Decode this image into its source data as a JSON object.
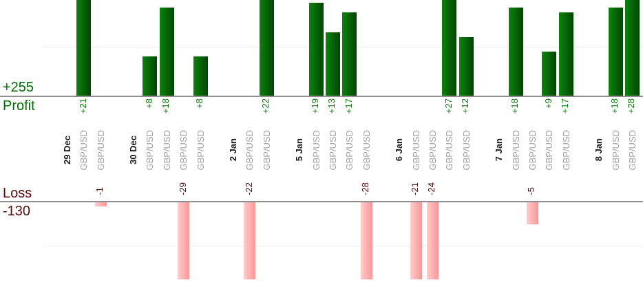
{
  "chart_data": {
    "type": "bar",
    "description": "Per-trade profit and loss bar chart grouped by day",
    "y_axis": {
      "profit_total": "+255",
      "profit_label": "Profit",
      "loss_label": "Loss",
      "loss_total": "-130"
    },
    "layout_hints": {
      "gridline_profit_value": 10,
      "gridline_loss_value": -10,
      "loss_bars_clipped_at": -18,
      "orientation": "values and category labels rotated 90deg CCW"
    },
    "groups": [
      {
        "date": "29 Dec",
        "trades": [
          {
            "symbol": "GBP/USD",
            "value": 21,
            "label": "+21"
          },
          {
            "symbol": "GBP/USD",
            "value": -1,
            "label": "-1"
          }
        ]
      },
      {
        "date": "30 Dec",
        "trades": [
          {
            "symbol": "GBP/USD",
            "value": 8,
            "label": "+8"
          },
          {
            "symbol": "GBP/USD",
            "value": 18,
            "label": "+18"
          },
          {
            "symbol": "GBP/USD",
            "value": -29,
            "label": "-29"
          },
          {
            "symbol": "GBP/USD",
            "value": 8,
            "label": "+8"
          }
        ]
      },
      {
        "date": "2 Jan",
        "trades": [
          {
            "symbol": "GBP/USD",
            "value": -22,
            "label": "-22"
          },
          {
            "symbol": "GBP/USD",
            "value": 22,
            "label": "+22"
          }
        ]
      },
      {
        "date": "5 Jan",
        "trades": [
          {
            "symbol": "GBP/USD",
            "value": 19,
            "label": "+19"
          },
          {
            "symbol": "GBP/USD",
            "value": 13,
            "label": "+13"
          },
          {
            "symbol": "GBP/USD",
            "value": 17,
            "label": "+17"
          },
          {
            "symbol": "GBP/USD",
            "value": -28,
            "label": "-28"
          }
        ]
      },
      {
        "date": "6 Jan",
        "trades": [
          {
            "symbol": "GBP/USD",
            "value": -21,
            "label": "-21"
          },
          {
            "symbol": "GBP/USD",
            "value": -24,
            "label": "-24"
          },
          {
            "symbol": "GBP/USD",
            "value": 27,
            "label": "+27"
          },
          {
            "symbol": "GBP/USD",
            "value": 12,
            "label": "+12"
          }
        ]
      },
      {
        "date": "7 Jan",
        "trades": [
          {
            "symbol": "GBP/USD",
            "value": 18,
            "label": "+18"
          },
          {
            "symbol": "GBP/USD",
            "value": -5,
            "label": "-5"
          },
          {
            "symbol": "GBP/USD",
            "value": 9,
            "label": "+9"
          },
          {
            "symbol": "GBP/USD",
            "value": 17,
            "label": "+17"
          }
        ]
      },
      {
        "date": "8 Jan",
        "trades": [
          {
            "symbol": "GBP/USD",
            "value": 18,
            "label": "+18"
          },
          {
            "symbol": "GBP/USD",
            "value": 28,
            "label": "+28"
          }
        ]
      }
    ]
  },
  "colors": {
    "profit_bar_start": "#0c840c",
    "profit_bar_end": "#014401",
    "loss_bar_start": "#ffcdcd",
    "loss_bar_end": "#f99696",
    "profit_text": "#0a780a",
    "profit_total_text": "#006e00",
    "loss_text": "#540c0c",
    "date_text": "#1a1a1a",
    "symbol_text": "#a2a2a2",
    "axis_line": "#8f8f8f",
    "gridline": "#ededed"
  }
}
